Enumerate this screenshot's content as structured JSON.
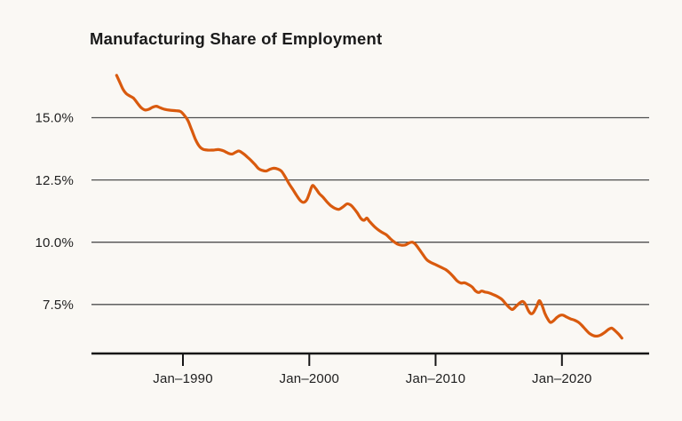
{
  "chart_data": {
    "type": "line",
    "title": "Manufacturing Share of Employment",
    "xlabel": "",
    "ylabel": "",
    "x_axis": {
      "tick_years": [
        1990,
        2000,
        2010,
        2020
      ],
      "tick_labels": [
        "Jan–1990",
        "Jan–2000",
        "Jan–2010",
        "Jan–2020"
      ],
      "xlim_years": [
        1982.8,
        2026.9
      ]
    },
    "y_axis": {
      "tick_values": [
        15.0,
        12.5,
        10.0,
        7.5
      ],
      "tick_labels": [
        "15.0%",
        "12.5%",
        "10.0%",
        "7.5%"
      ],
      "unit": "%",
      "ylim": [
        5.5,
        17.2
      ],
      "grid": true
    },
    "legend": "none",
    "series": [
      {
        "name": "Manufacturing share of employment",
        "color": "#D95A0E",
        "points": [
          [
            1984.75,
            16.7
          ],
          [
            1985.0,
            16.42
          ],
          [
            1985.25,
            16.15
          ],
          [
            1985.5,
            15.97
          ],
          [
            1985.8,
            15.87
          ],
          [
            1986.1,
            15.78
          ],
          [
            1986.4,
            15.58
          ],
          [
            1986.7,
            15.4
          ],
          [
            1987.0,
            15.31
          ],
          [
            1987.3,
            15.34
          ],
          [
            1987.6,
            15.42
          ],
          [
            1987.9,
            15.46
          ],
          [
            1988.2,
            15.4
          ],
          [
            1988.6,
            15.33
          ],
          [
            1989.0,
            15.3
          ],
          [
            1989.4,
            15.28
          ],
          [
            1989.8,
            15.25
          ],
          [
            1990.1,
            15.1
          ],
          [
            1990.4,
            14.88
          ],
          [
            1990.7,
            14.5
          ],
          [
            1991.0,
            14.12
          ],
          [
            1991.3,
            13.85
          ],
          [
            1991.6,
            13.73
          ],
          [
            1992.0,
            13.7
          ],
          [
            1992.4,
            13.7
          ],
          [
            1992.8,
            13.72
          ],
          [
            1993.2,
            13.67
          ],
          [
            1993.6,
            13.57
          ],
          [
            1993.9,
            13.54
          ],
          [
            1994.2,
            13.62
          ],
          [
            1994.45,
            13.66
          ],
          [
            1994.8,
            13.55
          ],
          [
            1995.1,
            13.42
          ],
          [
            1995.4,
            13.28
          ],
          [
            1995.7,
            13.12
          ],
          [
            1996.0,
            12.95
          ],
          [
            1996.3,
            12.88
          ],
          [
            1996.6,
            12.86
          ],
          [
            1996.9,
            12.93
          ],
          [
            1997.2,
            12.97
          ],
          [
            1997.5,
            12.94
          ],
          [
            1997.8,
            12.85
          ],
          [
            1998.1,
            12.62
          ],
          [
            1998.4,
            12.35
          ],
          [
            1998.7,
            12.12
          ],
          [
            1999.0,
            11.88
          ],
          [
            1999.3,
            11.67
          ],
          [
            1999.55,
            11.6
          ],
          [
            1999.8,
            11.7
          ],
          [
            2000.0,
            11.95
          ],
          [
            2000.25,
            12.27
          ],
          [
            2000.5,
            12.16
          ],
          [
            2000.8,
            11.95
          ],
          [
            2001.1,
            11.8
          ],
          [
            2001.4,
            11.62
          ],
          [
            2001.7,
            11.47
          ],
          [
            2002.0,
            11.37
          ],
          [
            2002.35,
            11.32
          ],
          [
            2002.7,
            11.43
          ],
          [
            2003.0,
            11.54
          ],
          [
            2003.25,
            11.5
          ],
          [
            2003.5,
            11.38
          ],
          [
            2003.8,
            11.18
          ],
          [
            2004.1,
            10.95
          ],
          [
            2004.35,
            10.88
          ],
          [
            2004.55,
            10.97
          ],
          [
            2004.75,
            10.85
          ],
          [
            2005.05,
            10.68
          ],
          [
            2005.4,
            10.52
          ],
          [
            2005.75,
            10.4
          ],
          [
            2006.1,
            10.3
          ],
          [
            2006.4,
            10.15
          ],
          [
            2006.7,
            10.02
          ],
          [
            2007.0,
            9.92
          ],
          [
            2007.3,
            9.88
          ],
          [
            2007.6,
            9.89
          ],
          [
            2007.9,
            9.97
          ],
          [
            2008.15,
            10.0
          ],
          [
            2008.4,
            9.92
          ],
          [
            2008.7,
            9.72
          ],
          [
            2009.0,
            9.5
          ],
          [
            2009.3,
            9.3
          ],
          [
            2009.65,
            9.18
          ],
          [
            2010.0,
            9.1
          ],
          [
            2010.4,
            9.0
          ],
          [
            2010.8,
            8.9
          ],
          [
            2011.1,
            8.78
          ],
          [
            2011.4,
            8.62
          ],
          [
            2011.7,
            8.45
          ],
          [
            2012.0,
            8.36
          ],
          [
            2012.3,
            8.37
          ],
          [
            2012.6,
            8.3
          ],
          [
            2012.9,
            8.2
          ],
          [
            2013.15,
            8.05
          ],
          [
            2013.4,
            7.98
          ],
          [
            2013.65,
            8.04
          ],
          [
            2013.9,
            8.0
          ],
          [
            2014.2,
            7.97
          ],
          [
            2014.6,
            7.89
          ],
          [
            2015.0,
            7.79
          ],
          [
            2015.3,
            7.68
          ],
          [
            2015.6,
            7.5
          ],
          [
            2015.9,
            7.35
          ],
          [
            2016.1,
            7.3
          ],
          [
            2016.4,
            7.44
          ],
          [
            2016.7,
            7.58
          ],
          [
            2016.9,
            7.62
          ],
          [
            2017.1,
            7.52
          ],
          [
            2017.35,
            7.25
          ],
          [
            2017.55,
            7.13
          ],
          [
            2017.75,
            7.18
          ],
          [
            2018.0,
            7.42
          ],
          [
            2018.2,
            7.65
          ],
          [
            2018.4,
            7.5
          ],
          [
            2018.65,
            7.15
          ],
          [
            2018.9,
            6.9
          ],
          [
            2019.1,
            6.78
          ],
          [
            2019.35,
            6.85
          ],
          [
            2019.6,
            6.98
          ],
          [
            2019.85,
            7.06
          ],
          [
            2020.1,
            7.07
          ],
          [
            2020.4,
            6.99
          ],
          [
            2020.7,
            6.92
          ],
          [
            2021.0,
            6.87
          ],
          [
            2021.3,
            6.79
          ],
          [
            2021.6,
            6.65
          ],
          [
            2021.9,
            6.48
          ],
          [
            2022.2,
            6.33
          ],
          [
            2022.5,
            6.25
          ],
          [
            2022.8,
            6.23
          ],
          [
            2023.1,
            6.28
          ],
          [
            2023.4,
            6.38
          ],
          [
            2023.7,
            6.5
          ],
          [
            2023.95,
            6.55
          ],
          [
            2024.2,
            6.45
          ],
          [
            2024.5,
            6.3
          ],
          [
            2024.75,
            6.15
          ]
        ]
      }
    ]
  },
  "colors": {
    "line": "#D95A0E",
    "background": "#FAF8F4",
    "grid": "#4F4F4F",
    "axis": "#161616",
    "text": "#1F1F1F",
    "title": "#1A1A1A"
  }
}
